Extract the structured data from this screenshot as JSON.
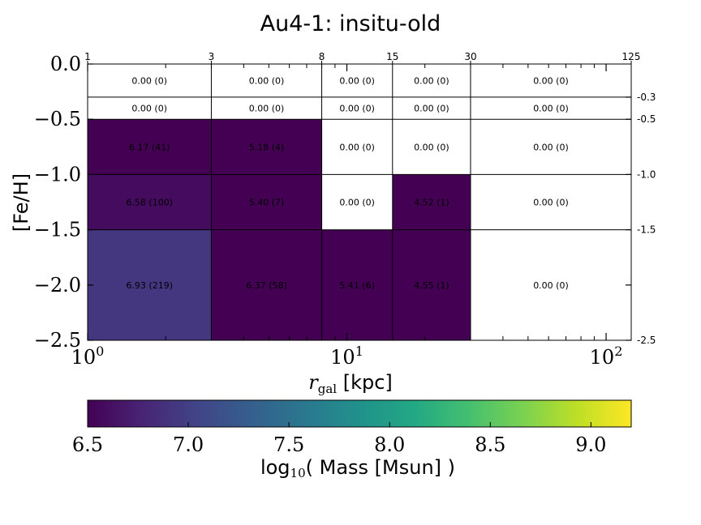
{
  "chart_data": {
    "type": "heatmap",
    "title": "Au4-1: insitu-old",
    "xlabel_sym": "r",
    "xlabel_sub": "gal",
    "xlabel_unit": "[kpc]",
    "ylabel": "[Fe/H]",
    "xscale": "log",
    "xlim": [
      1,
      125
    ],
    "ylim": [
      -2.5,
      0.0
    ],
    "x_edges": [
      1,
      3,
      8,
      15,
      30,
      125
    ],
    "y_edges": [
      0.0,
      -0.3,
      -0.5,
      -1.0,
      -1.5,
      -2.5
    ],
    "top_tick_labels": [
      "1",
      "3",
      "8",
      "15",
      "30",
      "125"
    ],
    "right_tick_labels": [
      "-0.3",
      "-0.5",
      "-1.0",
      "-1.5",
      "-2.5"
    ],
    "x_major_ticks": [
      {
        "value": 1,
        "base": "10",
        "exp": "0"
      },
      {
        "value": 10,
        "base": "10",
        "exp": "1"
      },
      {
        "value": 100,
        "base": "10",
        "exp": "2"
      }
    ],
    "y_ticks": [
      {
        "value": 0.0,
        "label": "0.0"
      },
      {
        "value": -0.5,
        "label": "−0.5"
      },
      {
        "value": -1.0,
        "label": "−1.0"
      },
      {
        "value": -1.5,
        "label": "−1.5"
      },
      {
        "value": -2.0,
        "label": "−2.0"
      },
      {
        "value": -2.5,
        "label": "−2.5"
      }
    ],
    "cells": [
      [
        {
          "value": 0.0,
          "count": 0
        },
        {
          "value": 0.0,
          "count": 0
        },
        {
          "value": 0.0,
          "count": 0
        },
        {
          "value": 0.0,
          "count": 0
        },
        {
          "value": 0.0,
          "count": 0
        }
      ],
      [
        {
          "value": 0.0,
          "count": 0
        },
        {
          "value": 0.0,
          "count": 0
        },
        {
          "value": 0.0,
          "count": 0
        },
        {
          "value": 0.0,
          "count": 0
        },
        {
          "value": 0.0,
          "count": 0
        }
      ],
      [
        {
          "value": 6.17,
          "count": 41
        },
        {
          "value": 5.18,
          "count": 4
        },
        {
          "value": 0.0,
          "count": 0
        },
        {
          "value": 0.0,
          "count": 0
        },
        {
          "value": 0.0,
          "count": 0
        }
      ],
      [
        {
          "value": 6.58,
          "count": 100
        },
        {
          "value": 5.4,
          "count": 7
        },
        {
          "value": 0.0,
          "count": 0
        },
        {
          "value": 4.52,
          "count": 1
        },
        {
          "value": 0.0,
          "count": 0
        }
      ],
      [
        {
          "value": 6.93,
          "count": 219
        },
        {
          "value": 6.37,
          "count": 58
        },
        {
          "value": 5.41,
          "count": 6
        },
        {
          "value": 4.55,
          "count": 1
        },
        {
          "value": 0.0,
          "count": 0
        }
      ]
    ],
    "colorbar": {
      "colormap": "viridis",
      "range": [
        6.5,
        9.2
      ],
      "ticks": [
        {
          "value": 6.5,
          "label": "6.5"
        },
        {
          "value": 7.0,
          "label": "7.0"
        },
        {
          "value": 7.5,
          "label": "7.5"
        },
        {
          "value": 8.0,
          "label": "8.0"
        },
        {
          "value": 8.5,
          "label": "8.5"
        },
        {
          "value": 9.0,
          "label": "9.0"
        }
      ],
      "label_pre": "log",
      "label_sub": "10",
      "label_post": "( Mass [Msun] )"
    }
  }
}
